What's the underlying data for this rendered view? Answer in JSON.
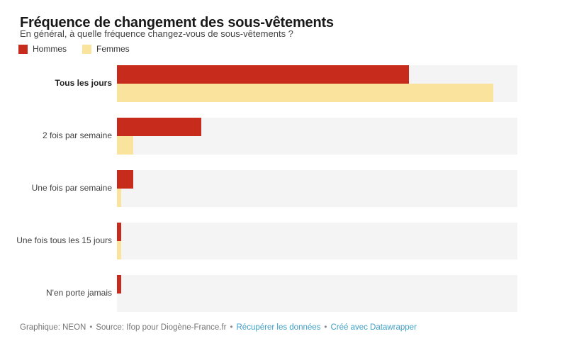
{
  "header": {
    "title": "Fréquence de changement des sous-vêtements",
    "subtitle": "En général, à quelle fréquence changez-vous de sous-vêtements ?"
  },
  "legend": {
    "items": [
      {
        "label": "Hommes",
        "color": "#c62b1c"
      },
      {
        "label": "Femmes",
        "color": "#fae39c"
      }
    ]
  },
  "chart_data": {
    "type": "bar",
    "orientation": "horizontal",
    "title": "Fréquence de changement des sous-vêtements",
    "subtitle": "En général, à quelle fréquence changez-vous de sous-vêtements ?",
    "categories": [
      "Tous les jours",
      "2 fois par semaine",
      "Une fois par semaine",
      "Une fois tous les 15 jours",
      "N'en porte jamais"
    ],
    "emphasized_category": "Tous les jours",
    "series": [
      {
        "name": "Hommes",
        "color": "#c62b1c",
        "values": [
          73,
          21,
          4,
          1,
          1
        ]
      },
      {
        "name": "Femmes",
        "color": "#fae39c",
        "values": [
          94,
          4,
          1,
          1,
          0
        ]
      }
    ],
    "unit": "%",
    "xlim": [
      0,
      100
    ],
    "grid": false,
    "legend_position": "top-left",
    "value_labels_shown": false
  },
  "footer": {
    "attribution": "Graphique: NEON",
    "source": "Source: Ifop pour Diogène-France.fr",
    "separator": "•",
    "links": [
      {
        "label": "Récupérer les données"
      },
      {
        "label": "Créé avec Datawrapper"
      }
    ]
  },
  "colors": {
    "hommes": "#c62b1c",
    "femmes": "#fae39c",
    "bar_track": "#f4f4f4",
    "link": "#3ea0c7",
    "title_text": "#181818",
    "body_text": "#444444",
    "footer_text": "#757575"
  }
}
